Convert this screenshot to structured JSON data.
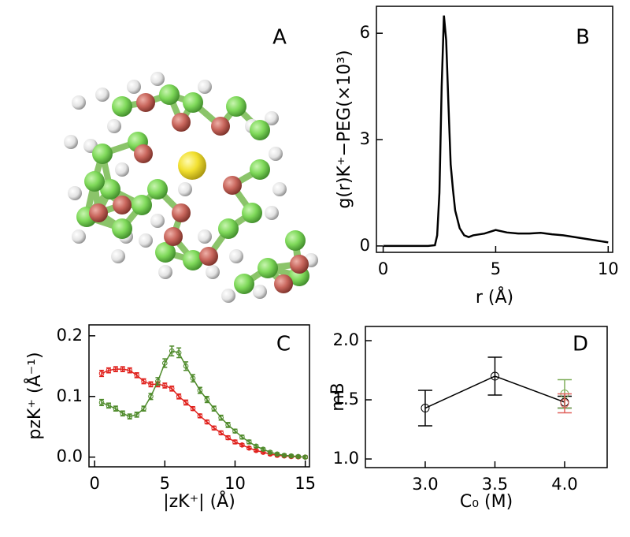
{
  "chart_data": [
    {
      "type": "image",
      "label": "A"
    },
    {
      "type": "line",
      "label": "B",
      "xlabel": "r (Å)",
      "ylabel": "g(r)K⁺−PEG(×10³)",
      "x": [
        0,
        0.5,
        1,
        1.5,
        2,
        2.3,
        2.4,
        2.5,
        2.6,
        2.7,
        2.8,
        2.9,
        3.0,
        3.1,
        3.2,
        3.4,
        3.6,
        3.8,
        4.0,
        4.5,
        5.0,
        5.5,
        6,
        6.5,
        7,
        7.5,
        8,
        8.5,
        9,
        9.5,
        10
      ],
      "values": [
        0,
        0,
        0,
        0,
        0,
        0.02,
        0.3,
        1.5,
        4.5,
        6.5,
        5.8,
        4.0,
        2.3,
        1.6,
        1.0,
        0.5,
        0.3,
        0.25,
        0.3,
        0.35,
        0.45,
        0.38,
        0.35,
        0.35,
        0.37,
        0.33,
        0.3,
        0.25,
        0.2,
        0.15,
        0.1
      ],
      "color": "#000000",
      "xlim": [
        -0.3,
        10.2
      ],
      "ylim": [
        -0.18,
        6.76
      ],
      "xticks": [
        0,
        5,
        10
      ],
      "yticks": [
        0,
        3,
        6
      ],
      "grid": false
    },
    {
      "type": "errorbar",
      "label": "C",
      "xlabel": "|zK⁺| (Å)",
      "ylabel": "pzK⁺ (Å⁻¹)",
      "x": [
        0.5,
        1,
        1.5,
        2,
        2.5,
        3,
        3.5,
        4,
        4.5,
        5,
        5.5,
        6,
        6.5,
        7,
        7.5,
        8,
        8.5,
        9,
        9.5,
        10,
        10.5,
        11,
        11.5,
        12,
        12.5,
        13,
        13.5,
        14,
        14.5,
        15
      ],
      "series": [
        {
          "color": "#e0211c",
          "values": [
            0.138,
            0.143,
            0.145,
            0.145,
            0.143,
            0.135,
            0.125,
            0.12,
            0.12,
            0.118,
            0.113,
            0.1,
            0.09,
            0.08,
            0.068,
            0.058,
            0.048,
            0.04,
            0.032,
            0.025,
            0.02,
            0.015,
            0.011,
            0.008,
            0.005,
            0.003,
            0.002,
            0.001,
            0.0005,
            0
          ],
          "errors": [
            0.005,
            0.004,
            0.004,
            0.004,
            0.004,
            0.004,
            0.004,
            0.004,
            0.004,
            0.004,
            0.004,
            0.004,
            0.004,
            0.003,
            0.003,
            0.003,
            0.003,
            0.003,
            0.003,
            0.003,
            0.002,
            0.002,
            0.002,
            0.002,
            0.002,
            0.002,
            0.002,
            0.002,
            0.002,
            0.002
          ]
        },
        {
          "color": "#4e8a2a",
          "values": [
            0.09,
            0.085,
            0.08,
            0.072,
            0.067,
            0.07,
            0.08,
            0.1,
            0.125,
            0.155,
            0.175,
            0.172,
            0.15,
            0.13,
            0.11,
            0.095,
            0.08,
            0.065,
            0.053,
            0.043,
            0.033,
            0.025,
            0.018,
            0.013,
            0.008,
            0.005,
            0.003,
            0.002,
            0.001,
            0
          ],
          "errors": [
            0.005,
            0.004,
            0.004,
            0.004,
            0.004,
            0.004,
            0.004,
            0.005,
            0.006,
            0.007,
            0.008,
            0.008,
            0.007,
            0.006,
            0.005,
            0.005,
            0.004,
            0.004,
            0.004,
            0.003,
            0.003,
            0.003,
            0.002,
            0.002,
            0.002,
            0.002,
            0.002,
            0.002,
            0.002,
            0.002
          ]
        }
      ],
      "xlim": [
        -0.4,
        15.3
      ],
      "ylim": [
        -0.016,
        0.218
      ],
      "xticks": [
        0,
        5,
        10,
        15
      ],
      "yticks": [
        {
          "value": 0,
          "label": "0.0"
        },
        0.1,
        0.2
      ],
      "grid": false
    },
    {
      "type": "errorbar",
      "label": "D",
      "xlabel": "C₀ (M)",
      "ylabel": "mB",
      "x": [
        3.0,
        3.5,
        4.0
      ],
      "series": [
        {
          "color": "#000000",
          "values": [
            1.43,
            1.7,
            1.48
          ],
          "errors": [
            0.15,
            0.16,
            0.05
          ]
        },
        {
          "color": "#7fae5a",
          "values": [
            null,
            null,
            1.55
          ],
          "errors": [
            null,
            null,
            0.12
          ]
        },
        {
          "color": "#e0605a",
          "values": [
            null,
            null,
            1.47
          ],
          "errors": [
            null,
            null,
            0.08
          ]
        }
      ],
      "xlim": [
        2.571,
        4.305
      ],
      "ylim": [
        0.927,
        2.12
      ],
      "xticks": [
        {
          "value": 3,
          "label": "3.0"
        },
        3.5,
        {
          "value": 4,
          "label": "4.0"
        }
      ],
      "yticks": [
        {
          "value": 1,
          "label": "1.0"
        },
        1.5,
        {
          "value": 2,
          "label": "2.0"
        }
      ],
      "grid": false
    }
  ]
}
